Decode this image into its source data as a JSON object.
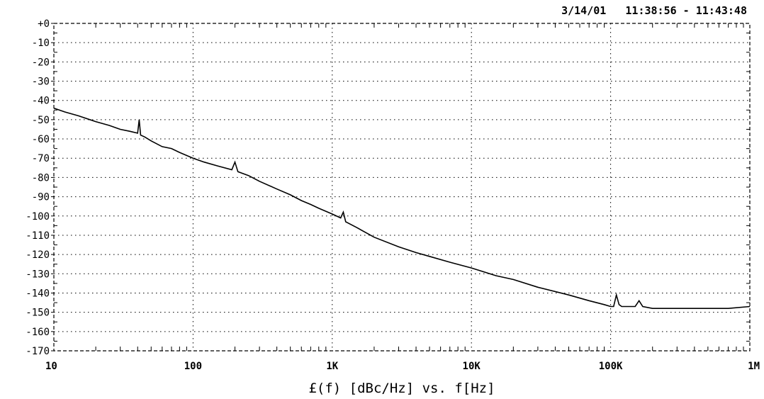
{
  "chart_data": {
    "type": "line",
    "timestamp": "3/14/01   11:38:56 - 11:43:48",
    "xlabel": "£(f) [dBc/Hz] vs. f[Hz]",
    "ylabel": "",
    "x_scale": "log",
    "xlim": [
      10,
      1000000
    ],
    "ylim": [
      -170,
      0
    ],
    "grid": true,
    "x_tick_values": [
      10,
      100,
      1000,
      10000,
      100000,
      1000000
    ],
    "x_tick_labels": [
      "10",
      "100",
      "1K",
      "10K",
      "100K",
      "1M"
    ],
    "y_tick_values": [
      0,
      -10,
      -20,
      -30,
      -40,
      -50,
      -60,
      -70,
      -80,
      -90,
      -100,
      -110,
      -120,
      -130,
      -140,
      -150,
      -160,
      -170
    ],
    "y_tick_labels": [
      "+0",
      "-10",
      "-20",
      "-30",
      "-40",
      "-50",
      "-60",
      "-70",
      "-80",
      "-90",
      "-100",
      "-110",
      "-120",
      "-130",
      "-140",
      "-150",
      "-160",
      "-170"
    ],
    "series": [
      {
        "x": [
          10,
          12,
          15,
          20,
          25,
          30,
          35,
          40,
          41,
          42,
          45,
          50,
          60,
          70,
          80,
          100,
          120,
          150,
          190,
          200,
          210,
          250,
          300,
          400,
          500,
          600,
          700,
          800,
          1000,
          1150,
          1200,
          1250,
          1500,
          2000,
          3000,
          4000,
          5000,
          7000,
          10000,
          15000,
          20000,
          30000,
          50000,
          70000,
          90000,
          100000,
          105000,
          110000,
          115000,
          120000,
          130000,
          150000,
          160000,
          170000,
          200000,
          300000,
          500000,
          700000,
          1000000
        ],
        "y": [
          -44,
          -46,
          -48,
          -51,
          -53,
          -55,
          -56,
          -57,
          -50,
          -58,
          -59,
          -61,
          -64,
          -65,
          -67,
          -70,
          -72,
          -74,
          -76,
          -72,
          -77,
          -79,
          -82,
          -86,
          -89,
          -92,
          -94,
          -96,
          -99,
          -101,
          -98,
          -103,
          -106,
          -111,
          -116,
          -119,
          -121,
          -124,
          -127,
          -131,
          -133,
          -137,
          -141,
          -144,
          -146,
          -147,
          -147,
          -141,
          -146,
          -147,
          -147,
          -147,
          -144,
          -147,
          -148,
          -148,
          -148,
          -148,
          -147
        ]
      }
    ]
  }
}
